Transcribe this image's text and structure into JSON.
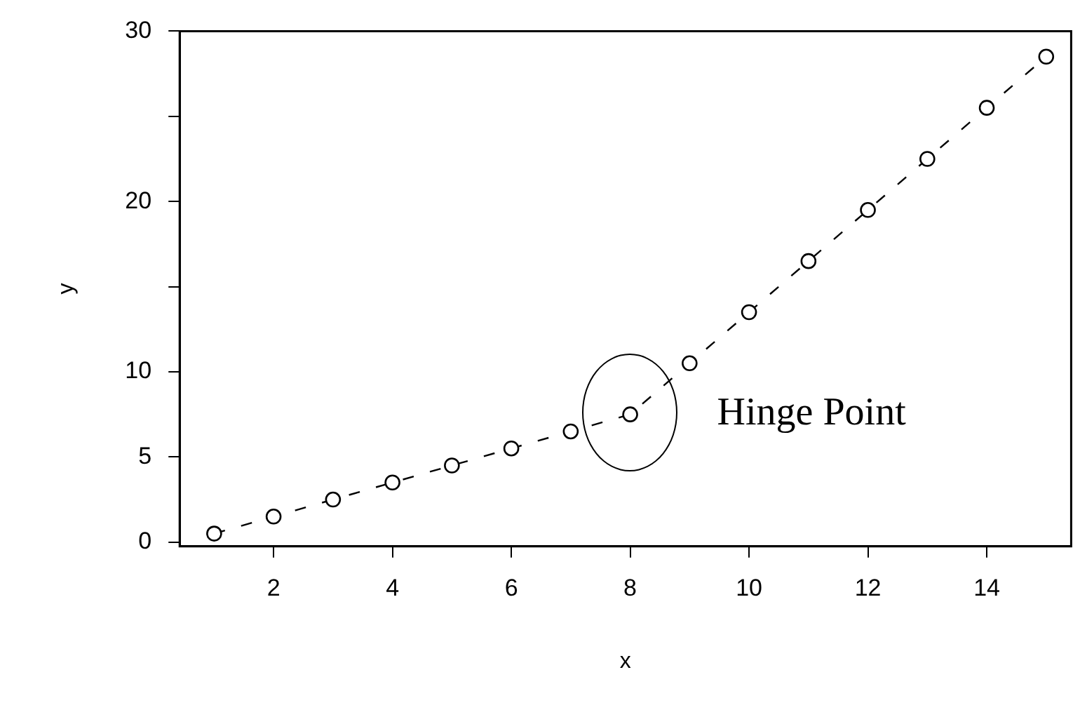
{
  "chart_data": {
    "type": "line",
    "xlabel": "x",
    "ylabel": "y",
    "x": [
      1,
      2,
      3,
      4,
      5,
      6,
      7,
      8,
      9,
      10,
      11,
      12,
      13,
      14,
      15
    ],
    "values": [
      0.5,
      1.5,
      2.5,
      3.5,
      4.5,
      5.5,
      6.5,
      7.5,
      10.5,
      13.5,
      16.5,
      19.5,
      22.5,
      25.5,
      28.5
    ],
    "color": "#000000",
    "marker": "circle",
    "line_style": "dashed",
    "grid": false,
    "legend": false,
    "xlim": [
      0.42,
      15.42
    ],
    "xticks": [
      2,
      4,
      6,
      8,
      10,
      12,
      14
    ],
    "ylim": [
      -0.25,
      30
    ],
    "yticks": [
      0,
      5,
      10,
      {
        "value": 15,
        "label": null
      },
      20,
      {
        "value": 25,
        "label": null
      },
      30
    ],
    "annotations": [
      {
        "text": "Hinge Point",
        "x": 8,
        "y": 7.5
      }
    ]
  }
}
